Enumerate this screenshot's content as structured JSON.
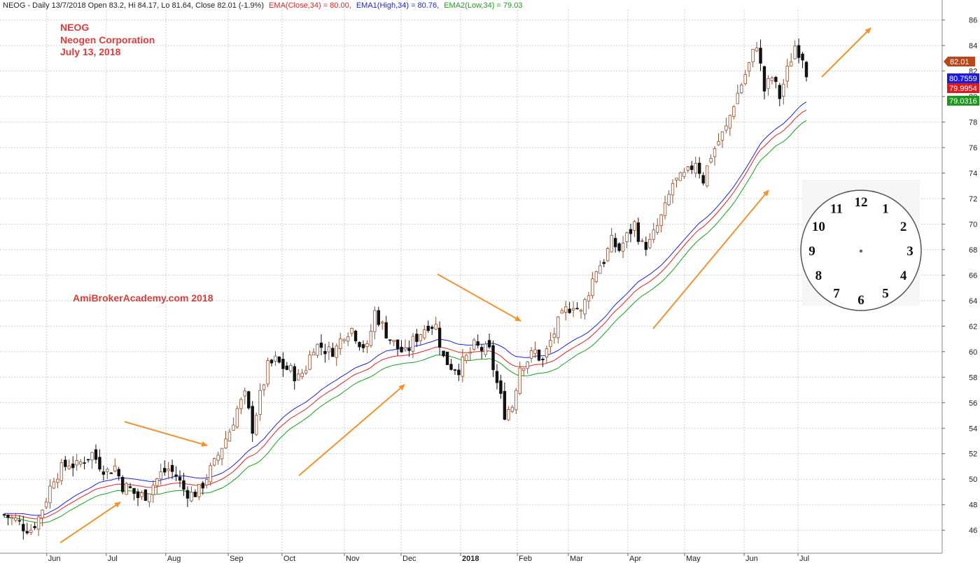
{
  "chart_data": {
    "type": "candlestick",
    "header": {
      "prefix": "NEOG - Daily 13/7/2018 Open 83.2, Hi 84.17, Lo 81.64, Close 82.01 (-1.9%)",
      "ema_close": "EMA(Close,34) = 80.00,",
      "ema_high": "EMA1(High,34) = 80.76,",
      "ema_low": "EMA2(Low,34) = 79.03"
    },
    "annotations": {
      "line1": "NEOG",
      "line2": "Neogen Corporation",
      "line3": "July 13, 2018",
      "watermark": "AmiBrokerAcademy.com  2018"
    },
    "y_ticks": [
      "46",
      "48",
      "50",
      "52",
      "54",
      "56",
      "58",
      "60",
      "62",
      "64",
      "66",
      "68",
      "70",
      "72",
      "74",
      "76",
      "78",
      "80",
      "82",
      "84",
      "86"
    ],
    "y_range": [
      44.2,
      86.8
    ],
    "x_ticks": [
      "Jun",
      "Jul",
      "Aug",
      "Sep",
      "Oct",
      "Nov",
      "Dec",
      "2018",
      "Feb",
      "Mar",
      "Apr",
      "May",
      "Jun",
      "Jul"
    ],
    "last_values": {
      "close": "82.01",
      "ema_high": "80.7559",
      "ema_close": "79.9954",
      "ema_low": "79.0316"
    },
    "close_path": [
      [
        1,
        47.2
      ],
      [
        4,
        46.8
      ],
      [
        6,
        46.3
      ],
      [
        8,
        46.1
      ],
      [
        10,
        47.0
      ],
      [
        12,
        48.5
      ],
      [
        14,
        50.2
      ],
      [
        16,
        50.8
      ],
      [
        18,
        51.3
      ],
      [
        20,
        51.0
      ],
      [
        22,
        51.6
      ],
      [
        24,
        52.0
      ],
      [
        26,
        51.2
      ],
      [
        28,
        50.6
      ],
      [
        30,
        51.0
      ],
      [
        32,
        49.5
      ],
      [
        34,
        49.2
      ],
      [
        36,
        48.6
      ],
      [
        38,
        48.8
      ],
      [
        40,
        49.6
      ],
      [
        42,
        50.4
      ],
      [
        44,
        50.8
      ],
      [
        46,
        50.3
      ],
      [
        48,
        49.2
      ],
      [
        50,
        48.8
      ],
      [
        52,
        49.1
      ],
      [
        54,
        50.2
      ],
      [
        56,
        51.2
      ],
      [
        58,
        52.6
      ],
      [
        60,
        53.8
      ],
      [
        62,
        55.5
      ],
      [
        64,
        56.5
      ],
      [
        66,
        54.0
      ],
      [
        68,
        56.5
      ],
      [
        70,
        58.8
      ],
      [
        72,
        59.3
      ],
      [
        74,
        58.8
      ],
      [
        76,
        58.5
      ],
      [
        78,
        57.9
      ],
      [
        80,
        58.8
      ],
      [
        82,
        60.5
      ],
      [
        84,
        60.4
      ],
      [
        86,
        60.0
      ],
      [
        88,
        60.3
      ],
      [
        90,
        61.5
      ],
      [
        92,
        61.8
      ],
      [
        94,
        60.8
      ],
      [
        96,
        60.2
      ],
      [
        98,
        63.1
      ],
      [
        100,
        62.0
      ],
      [
        102,
        61.0
      ],
      [
        104,
        60.3
      ],
      [
        106,
        59.8
      ],
      [
        108,
        60.8
      ],
      [
        110,
        61.5
      ],
      [
        112,
        62.2
      ],
      [
        114,
        62.0
      ],
      [
        116,
        59.5
      ],
      [
        118,
        58.9
      ],
      [
        120,
        58.7
      ],
      [
        122,
        59.5
      ],
      [
        124,
        60.4
      ],
      [
        126,
        60.2
      ],
      [
        128,
        60.0
      ],
      [
        130,
        57.5
      ],
      [
        132,
        55.2
      ],
      [
        134,
        55.8
      ],
      [
        136,
        58.9
      ],
      [
        138,
        59.4
      ],
      [
        140,
        60.0
      ],
      [
        142,
        59.2
      ],
      [
        144,
        60.8
      ],
      [
        146,
        62.2
      ],
      [
        148,
        63.2
      ],
      [
        150,
        63.8
      ],
      [
        152,
        63.0
      ],
      [
        154,
        64.8
      ],
      [
        156,
        66.5
      ],
      [
        158,
        67.2
      ],
      [
        160,
        68.6
      ],
      [
        162,
        68.0
      ],
      [
        164,
        69.0
      ],
      [
        166,
        70.0
      ],
      [
        168,
        68.3
      ],
      [
        170,
        68.5
      ],
      [
        172,
        69.8
      ],
      [
        174,
        71.2
      ],
      [
        176,
        73.2
      ],
      [
        178,
        73.5
      ],
      [
        180,
        74.0
      ],
      [
        182,
        75.0
      ],
      [
        184,
        73.5
      ],
      [
        186,
        75.4
      ],
      [
        188,
        76.5
      ],
      [
        190,
        77.5
      ],
      [
        192,
        79.5
      ],
      [
        194,
        81.0
      ],
      [
        196,
        82.5
      ],
      [
        198,
        84.2
      ],
      [
        200,
        80.5
      ],
      [
        202,
        81.5
      ],
      [
        204,
        80.0
      ],
      [
        206,
        82.0
      ],
      [
        208,
        84.0
      ],
      [
        210,
        83.2
      ],
      [
        211,
        82.01
      ]
    ],
    "bars_total": 211,
    "series": [
      {
        "name": "EMA(Close,34)",
        "color": "#e82020"
      },
      {
        "name": "EMA1(High,34)",
        "color": "#2020e8"
      },
      {
        "name": "EMA2(Low,34)",
        "color": "#18a018"
      }
    ],
    "clock": {
      "numbers": [
        "12",
        "1",
        "2",
        "3",
        "4",
        "5",
        "6",
        "7",
        "8",
        "9",
        "10",
        "11"
      ]
    }
  }
}
